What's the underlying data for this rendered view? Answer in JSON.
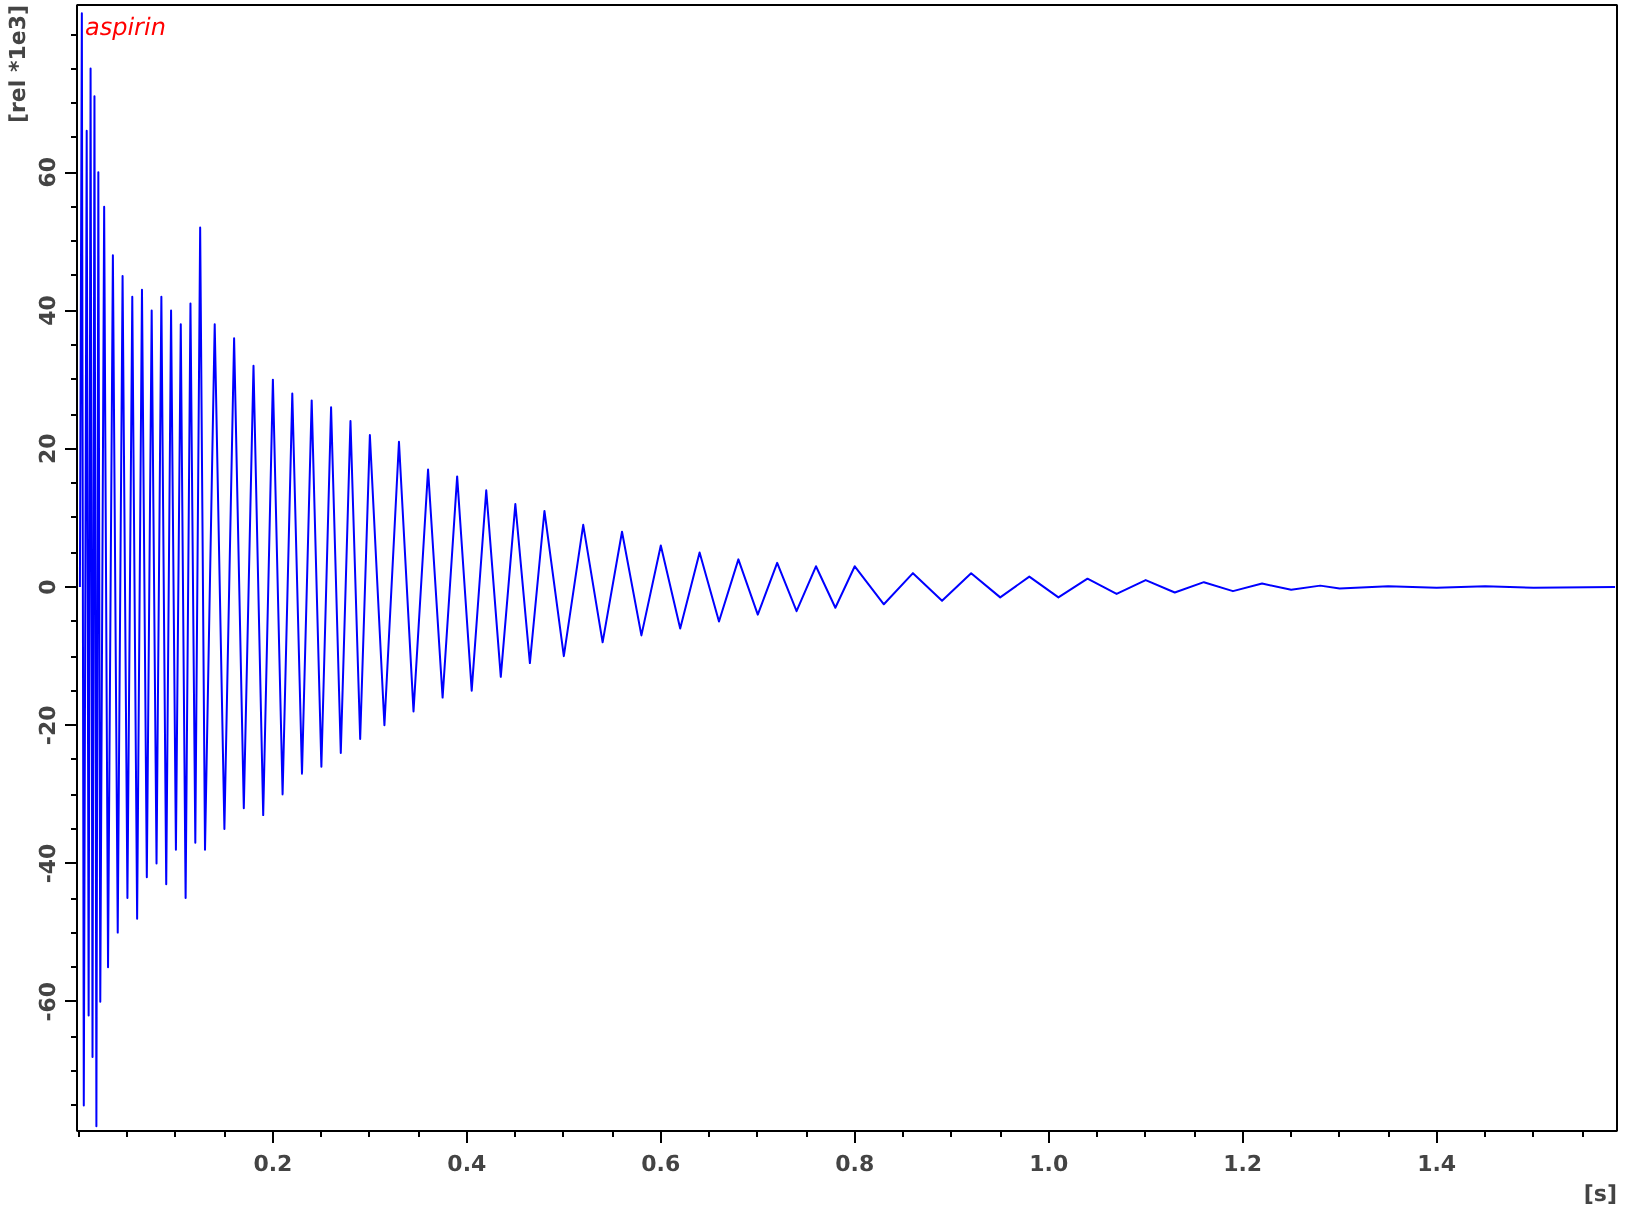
{
  "chart_data": {
    "type": "line",
    "title": "aspirin",
    "xlabel": "[s]",
    "ylabel": "[rel *1e3]",
    "xlim": [
      -0.002,
      1.586
    ],
    "xticks": [
      {
        "value": 0.2,
        "label": "0.2"
      },
      {
        "value": 0.4,
        "label": "0.4"
      },
      {
        "value": 0.6,
        "label": "0.6"
      },
      {
        "value": 0.8,
        "label": "0.8"
      },
      {
        "value": 1.0,
        "label": "1.0"
      },
      {
        "value": 1.2,
        "label": "1.2"
      },
      {
        "value": 1.4,
        "label": "1.4"
      }
    ],
    "ylim": [
      -78.7,
      84.2
    ],
    "yticks": [
      -60,
      -40,
      -20,
      0,
      20,
      40,
      60
    ],
    "grid": false,
    "marker": "none",
    "line_style": "solid",
    "series": [
      {
        "color": "#0000ff",
        "x": [
          0.001,
          0.003,
          0.005,
          0.008,
          0.01,
          0.012,
          0.014,
          0.016,
          0.018,
          0.02,
          0.022,
          0.026,
          0.03,
          0.035,
          0.04,
          0.045,
          0.05,
          0.055,
          0.06,
          0.065,
          0.07,
          0.075,
          0.08,
          0.085,
          0.09,
          0.095,
          0.1,
          0.105,
          0.11,
          0.115,
          0.12,
          0.125,
          0.13,
          0.14,
          0.15,
          0.16,
          0.17,
          0.18,
          0.19,
          0.2,
          0.21,
          0.22,
          0.23,
          0.24,
          0.25,
          0.26,
          0.27,
          0.28,
          0.29,
          0.3,
          0.315,
          0.33,
          0.345,
          0.36,
          0.375,
          0.39,
          0.405,
          0.42,
          0.435,
          0.45,
          0.465,
          0.48,
          0.5,
          0.52,
          0.54,
          0.56,
          0.58,
          0.6,
          0.62,
          0.64,
          0.66,
          0.68,
          0.7,
          0.72,
          0.74,
          0.76,
          0.78,
          0.8,
          0.83,
          0.86,
          0.89,
          0.92,
          0.95,
          0.98,
          1.01,
          1.04,
          1.07,
          1.1,
          1.13,
          1.16,
          1.19,
          1.22,
          1.25,
          1.28,
          1.3,
          1.35,
          1.4,
          1.45,
          1.5,
          1.584
        ],
        "values": [
          0,
          83,
          -75,
          66,
          -62,
          75,
          -68,
          71,
          -78,
          60,
          -60,
          55,
          -55,
          48,
          -50,
          45,
          -45,
          42,
          -48,
          43,
          -42,
          40,
          -40,
          42,
          -43,
          40,
          -38,
          38,
          -45,
          41,
          -37,
          52,
          -38,
          38,
          -35,
          36,
          -32,
          32,
          -33,
          30,
          -30,
          28,
          -27,
          27,
          -26,
          26,
          -24,
          24,
          -22,
          22,
          -20,
          21,
          -18,
          17,
          -16,
          16,
          -15,
          14,
          -13,
          12,
          -11,
          11,
          -10,
          9,
          -8,
          8,
          -7,
          6,
          -6,
          5,
          -5,
          4,
          -4,
          3.5,
          -3.5,
          3,
          -3,
          3,
          -2.5,
          2,
          -2,
          2,
          -1.5,
          1.5,
          -1.5,
          1.2,
          -1,
          1,
          -0.8,
          0.7,
          -0.6,
          0.5,
          -0.4,
          0.2,
          -0.2,
          0.1,
          -0.1,
          0.1,
          -0.1,
          0
        ]
      }
    ]
  }
}
